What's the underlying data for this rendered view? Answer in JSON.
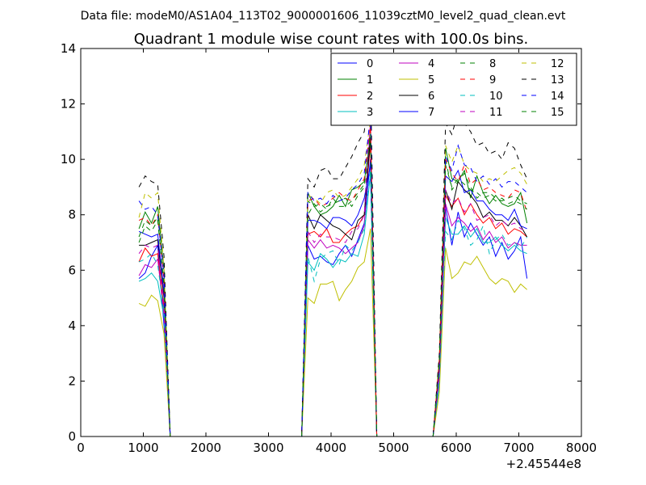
{
  "header": {
    "data_file": "Data file: modeM0/AS1A04_113T02_9000001606_11039cztM0_level2_quad_clean.evt"
  },
  "chart_data": {
    "type": "line",
    "title": "Quadrant 1 module wise count rates with 100.0s bins.",
    "xlabel": "",
    "ylabel": "",
    "x_offset_label": "+2.45544e8",
    "xlim": [
      0,
      8000
    ],
    "ylim": [
      0,
      14
    ],
    "x_ticks": [
      0,
      1000,
      2000,
      3000,
      4000,
      5000,
      6000,
      7000,
      8000
    ],
    "y_ticks": [
      0,
      2,
      4,
      6,
      8,
      10,
      12,
      14
    ],
    "legend_position": "top-right",
    "legend_columns": 4,
    "x": [
      930,
      1030,
      1130,
      1230,
      1330,
      1430,
      1530,
      3430,
      3530,
      3630,
      3730,
      3830,
      3930,
      4030,
      4130,
      4230,
      4330,
      4430,
      4530,
      4630,
      4730,
      5630,
      5730,
      5830,
      5930,
      6030,
      6130,
      6230,
      6330,
      6430,
      6530,
      6630,
      6730,
      6830,
      6930,
      7030,
      7130
    ],
    "series": [
      {
        "name": "0",
        "color": "#0000ff",
        "dashed": false,
        "values": [
          5.7,
          5.9,
          6.5,
          6.9,
          4.0,
          0,
          0,
          0,
          0,
          6.9,
          6.4,
          6.5,
          6.3,
          6.2,
          6.6,
          6.9,
          6.5,
          7.1,
          7.7,
          10.0,
          0,
          0,
          2.0,
          8.3,
          6.9,
          8.1,
          7.2,
          7.7,
          7.3,
          6.9,
          7.2,
          6.5,
          7.0,
          6.4,
          6.7,
          7.2,
          5.7
        ]
      },
      {
        "name": "1",
        "color": "#008000",
        "dashed": false,
        "values": [
          7.5,
          8.1,
          7.7,
          8.3,
          6.0,
          0,
          0,
          0,
          0,
          8.8,
          8.3,
          8.0,
          8.1,
          8.3,
          8.7,
          8.3,
          8.9,
          9.0,
          9.2,
          10.8,
          0,
          0,
          2.8,
          10.4,
          9.3,
          9.2,
          9.6,
          8.6,
          9.4,
          8.8,
          8.4,
          8.7,
          8.4,
          8.3,
          8.4,
          8.8,
          7.7
        ]
      },
      {
        "name": "2",
        "color": "#ff0000",
        "dashed": false,
        "values": [
          6.3,
          6.8,
          6.5,
          6.6,
          4.6,
          0,
          0,
          0,
          0,
          7.3,
          7.4,
          7.2,
          7.5,
          7.0,
          7.0,
          7.3,
          7.5,
          7.6,
          8.0,
          10.6,
          0,
          0,
          2.4,
          8.7,
          8.3,
          8.6,
          8.0,
          8.4,
          8.0,
          7.7,
          7.9,
          7.5,
          7.7,
          7.3,
          7.5,
          7.4,
          7.2
        ]
      },
      {
        "name": "3",
        "color": "#00bfbf",
        "dashed": false,
        "values": [
          5.6,
          5.7,
          5.9,
          5.6,
          4.3,
          0,
          0,
          0,
          0,
          6.3,
          6.0,
          6.6,
          6.4,
          6.1,
          6.4,
          6.3,
          6.6,
          6.5,
          7.3,
          9.5,
          0,
          0,
          1.9,
          7.9,
          7.3,
          7.3,
          7.6,
          7.2,
          7.5,
          7.0,
          7.0,
          7.2,
          6.9,
          6.7,
          6.9,
          6.7,
          6.6
        ]
      },
      {
        "name": "4",
        "color": "#bf00bf",
        "dashed": false,
        "values": [
          5.8,
          6.2,
          6.1,
          6.4,
          4.4,
          0,
          0,
          0,
          0,
          7.1,
          6.8,
          7.1,
          6.8,
          6.9,
          6.8,
          6.6,
          6.8,
          7.0,
          7.6,
          11.4,
          0,
          0,
          2.2,
          8.4,
          7.6,
          7.9,
          7.7,
          7.4,
          7.6,
          7.1,
          7.4,
          7.0,
          7.2,
          6.8,
          7.0,
          6.9,
          6.9
        ]
      },
      {
        "name": "5",
        "color": "#bfbf00",
        "dashed": false,
        "values": [
          4.8,
          4.7,
          5.1,
          4.9,
          3.7,
          0,
          0,
          0,
          0,
          5.0,
          4.8,
          5.5,
          5.5,
          5.6,
          4.9,
          5.3,
          5.6,
          6.1,
          6.3,
          7.5,
          0,
          0,
          1.6,
          6.8,
          5.7,
          5.9,
          6.3,
          6.2,
          6.5,
          6.1,
          5.7,
          5.5,
          5.7,
          5.6,
          5.2,
          5.5,
          5.3
        ]
      },
      {
        "name": "6",
        "color": "#000000",
        "dashed": false,
        "values": [
          6.9,
          6.9,
          7.0,
          7.1,
          5.0,
          0,
          0,
          0,
          0,
          8.0,
          7.5,
          8.0,
          7.8,
          7.6,
          7.5,
          7.3,
          7.1,
          7.8,
          8.0,
          10.8,
          0,
          0,
          2.6,
          8.9,
          8.2,
          9.2,
          8.9,
          8.7,
          8.4,
          7.9,
          8.1,
          7.8,
          7.8,
          7.6,
          7.9,
          7.6,
          7.2
        ]
      },
      {
        "name": "7",
        "color": "#0000ff",
        "dashed": false,
        "values": [
          7.4,
          7.3,
          7.2,
          7.3,
          5.2,
          0,
          0,
          0,
          0,
          7.8,
          7.8,
          7.7,
          7.5,
          7.9,
          7.9,
          7.8,
          7.6,
          8.0,
          8.6,
          9.8,
          0,
          0,
          2.5,
          9.4,
          9.2,
          9.6,
          8.8,
          8.9,
          8.5,
          8.5,
          8.2,
          8.0,
          8.0,
          7.8,
          8.2,
          7.6,
          7.5
        ]
      },
      {
        "name": "8",
        "color": "#008000",
        "dashed": true,
        "values": [
          7.0,
          7.6,
          7.4,
          7.8,
          5.5,
          0,
          0,
          0,
          0,
          8.5,
          8.3,
          8.4,
          8.2,
          8.6,
          8.3,
          8.3,
          8.5,
          8.8,
          9.1,
          11.0,
          0,
          0,
          2.7,
          10.0,
          8.9,
          9.2,
          9.5,
          9.0,
          8.6,
          8.8,
          8.8,
          8.6,
          8.5,
          8.6,
          8.7,
          8.5,
          8.4
        ]
      },
      {
        "name": "9",
        "color": "#ff0000",
        "dashed": true,
        "values": [
          7.8,
          7.9,
          7.6,
          8.0,
          5.6,
          0,
          0,
          0,
          0,
          8.5,
          8.6,
          8.3,
          8.4,
          8.6,
          8.8,
          8.6,
          8.5,
          8.9,
          9.3,
          11.2,
          0,
          0,
          2.8,
          10.0,
          9.5,
          9.2,
          9.8,
          9.1,
          9.3,
          8.9,
          9.0,
          8.8,
          8.7,
          8.6,
          8.9,
          8.8,
          8.1
        ]
      },
      {
        "name": "10",
        "color": "#00bfbf",
        "dashed": true,
        "values": [
          6.3,
          6.4,
          6.6,
          6.2,
          4.5,
          0,
          0,
          0,
          0,
          6.5,
          5.6,
          6.4,
          6.6,
          6.7,
          6.2,
          6.9,
          6.7,
          7.0,
          7.5,
          9.6,
          0,
          0,
          2.0,
          7.4,
          7.1,
          7.8,
          7.5,
          6.9,
          7.1,
          7.6,
          6.6,
          7.1,
          7.3,
          6.9,
          7.0,
          6.8,
          7.2
        ]
      },
      {
        "name": "11",
        "color": "#bf00bf",
        "dashed": true,
        "values": [
          6.6,
          6.9,
          6.8,
          6.9,
          4.8,
          0,
          0,
          0,
          0,
          7.4,
          7.0,
          7.3,
          7.2,
          7.2,
          7.1,
          7.0,
          7.4,
          7.5,
          8.0,
          12.1,
          0,
          0,
          2.4,
          8.9,
          8.4,
          8.6,
          8.1,
          8.4,
          7.8,
          7.9,
          8.0,
          7.6,
          7.8,
          7.6,
          7.7,
          7.5,
          7.4
        ]
      },
      {
        "name": "12",
        "color": "#bfbf00",
        "dashed": true,
        "values": [
          7.9,
          8.8,
          8.6,
          8.8,
          6.1,
          0,
          0,
          0,
          0,
          8.7,
          8.6,
          8.4,
          8.8,
          8.9,
          8.6,
          8.7,
          9.0,
          9.3,
          9.8,
          11.4,
          0,
          0,
          2.9,
          10.5,
          9.9,
          10.5,
          9.8,
          9.6,
          9.5,
          9.2,
          9.3,
          9.2,
          9.4,
          9.6,
          9.7,
          9.5,
          9.1
        ]
      },
      {
        "name": "13",
        "color": "#000000",
        "dashed": true,
        "values": [
          9.0,
          9.4,
          9.2,
          9.1,
          6.5,
          0,
          0,
          0,
          0,
          9.3,
          9.0,
          9.6,
          9.7,
          9.3,
          9.3,
          9.7,
          10.1,
          10.6,
          11.0,
          13.0,
          0,
          0,
          3.0,
          11.3,
          10.9,
          11.7,
          11.3,
          11.0,
          10.5,
          10.6,
          10.2,
          10.3,
          10.0,
          10.6,
          10.4,
          9.8,
          9.3
        ]
      },
      {
        "name": "14",
        "color": "#0000ff",
        "dashed": true,
        "values": [
          8.5,
          8.2,
          8.3,
          8.0,
          5.8,
          0,
          0,
          0,
          0,
          8.8,
          8.5,
          8.6,
          8.4,
          8.7,
          8.5,
          8.6,
          8.9,
          9.1,
          9.5,
          11.6,
          0,
          0,
          2.6,
          10.1,
          9.6,
          10.5,
          9.8,
          9.7,
          9.2,
          9.4,
          9.1,
          9.3,
          9.0,
          9.2,
          9.2,
          9.0,
          8.8
        ]
      },
      {
        "name": "15",
        "color": "#008000",
        "dashed": true,
        "values": [
          7.2,
          7.8,
          7.6,
          7.9,
          5.4,
          0,
          0,
          0,
          0,
          8.0,
          8.4,
          8.1,
          8.3,
          8.4,
          8.5,
          8.6,
          8.3,
          8.7,
          9.0,
          10.9,
          0,
          0,
          2.7,
          9.8,
          9.0,
          9.3,
          9.1,
          8.9,
          8.8,
          8.6,
          8.7,
          8.5,
          8.6,
          8.4,
          8.5,
          8.4,
          8.2
        ]
      }
    ]
  }
}
